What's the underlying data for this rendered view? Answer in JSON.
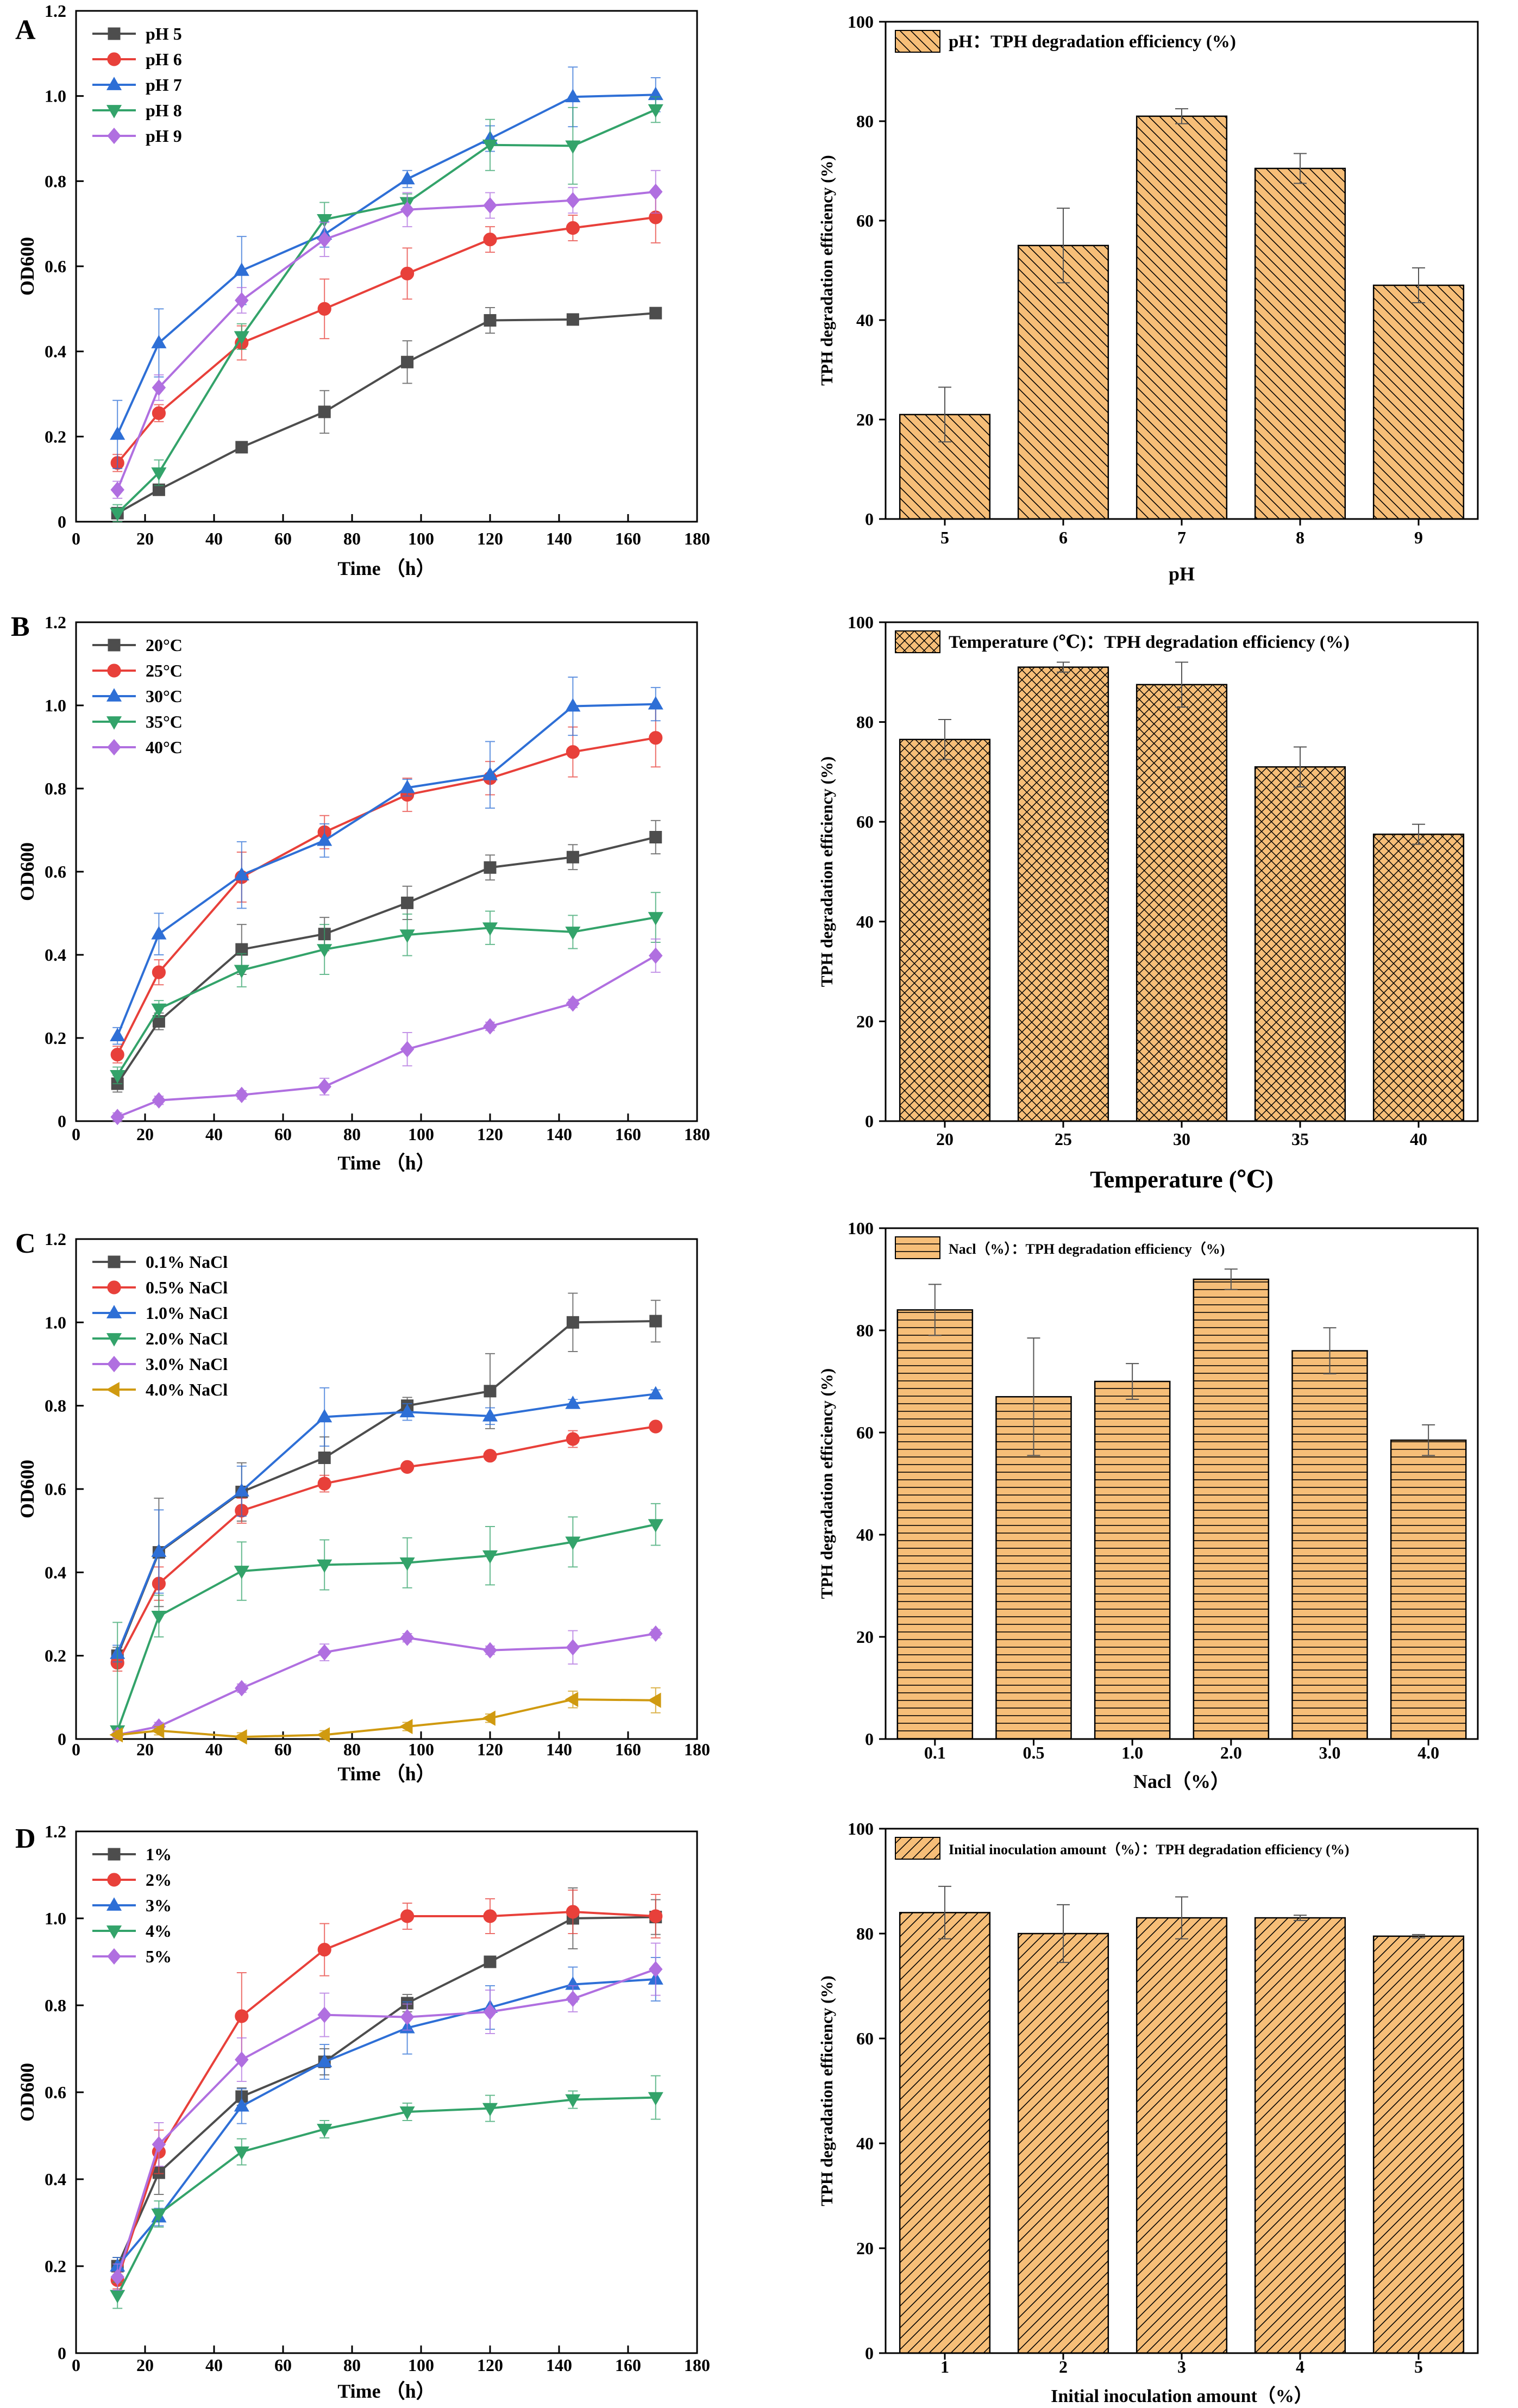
{
  "panels": [
    {
      "letter": "A",
      "line": {
        "xlabel": "Time （h）",
        "ylabel": "OD600",
        "xlim": [
          0,
          180
        ],
        "ylim": [
          0,
          1.2
        ],
        "xticks": [
          0,
          20,
          40,
          60,
          80,
          100,
          120,
          140,
          160,
          180
        ],
        "yticks": [
          0,
          0.2,
          0.4,
          0.6,
          0.8,
          1.0,
          1.2
        ],
        "ytick_labels": [
          "0",
          "0.2",
          "0.4",
          "0.6",
          "0.8",
          "1.0",
          "1.2"
        ],
        "x": [
          12,
          24,
          48,
          72,
          96,
          120,
          144,
          168
        ],
        "series": [
          {
            "name": "pH 5",
            "marker": "square",
            "color": "#4d4d4d",
            "values": [
              0.02,
              0.075,
              0.175,
              0.258,
              0.375,
              0.473,
              0.475,
              0.49
            ],
            "err": [
              0.01,
              0.01,
              0.01,
              0.05,
              0.05,
              0.03,
              0.01,
              0.01
            ]
          },
          {
            "name": "pH 6",
            "marker": "circle",
            "color": "#e8403a",
            "values": [
              0.138,
              0.255,
              0.42,
              0.5,
              0.583,
              0.663,
              0.69,
              0.715
            ],
            "err": [
              0.02,
              0.02,
              0.04,
              0.07,
              0.06,
              0.03,
              0.03,
              0.06
            ]
          },
          {
            "name": "pH 7",
            "marker": "triangle-up",
            "color": "#2e6fd6",
            "values": [
              0.205,
              0.42,
              0.59,
              0.675,
              0.805,
              0.9,
              0.998,
              1.003
            ],
            "err": [
              0.08,
              0.08,
              0.08,
              0.03,
              0.02,
              0.03,
              0.07,
              0.04
            ]
          },
          {
            "name": "pH 8",
            "marker": "triangle-down",
            "color": "#33a36a",
            "values": [
              0.02,
              0.115,
              0.435,
              0.71,
              0.75,
              0.885,
              0.883,
              0.968
            ],
            "err": [
              0.02,
              0.03,
              0.03,
              0.04,
              0.02,
              0.06,
              0.09,
              0.03
            ]
          },
          {
            "name": "pH 9",
            "marker": "diamond",
            "color": "#b06fe0",
            "values": [
              0.075,
              0.315,
              0.52,
              0.663,
              0.733,
              0.743,
              0.755,
              0.775
            ],
            "err": [
              0.02,
              0.03,
              0.03,
              0.04,
              0.04,
              0.03,
              0.03,
              0.05
            ]
          }
        ]
      },
      "bar": {
        "legend": "pH：TPH degradation efficiency (%)",
        "xlabel": "pH",
        "ylabel": "TPH degradation efficiency (%)",
        "ylim": [
          0,
          100
        ],
        "yticks": [
          0,
          20,
          40,
          60,
          80,
          100
        ],
        "categories": [
          "5",
          "6",
          "7",
          "8",
          "9"
        ],
        "values": [
          21,
          55,
          81,
          70.5,
          47
        ],
        "err": [
          5.5,
          7.5,
          1.5,
          3,
          3.5
        ],
        "pattern": "hatch-back"
      }
    },
    {
      "letter": "B",
      "line": {
        "xlabel": "Time （h）",
        "ylabel": "OD600",
        "xlim": [
          0,
          180
        ],
        "ylim": [
          0,
          1.2
        ],
        "xticks": [
          0,
          20,
          40,
          60,
          80,
          100,
          120,
          140,
          160,
          180
        ],
        "yticks": [
          0,
          0.2,
          0.4,
          0.6,
          0.8,
          1.0,
          1.2
        ],
        "ytick_labels": [
          "0",
          "0.2",
          "0.4",
          "0.6",
          "0.8",
          "1.0",
          "1.2"
        ],
        "x": [
          12,
          24,
          48,
          72,
          96,
          120,
          144,
          168
        ],
        "series": [
          {
            "name": "20°C",
            "marker": "square",
            "color": "#4d4d4d",
            "values": [
              0.09,
              0.24,
              0.413,
              0.45,
              0.525,
              0.61,
              0.635,
              0.683
            ],
            "err": [
              0.02,
              0.02,
              0.06,
              0.04,
              0.04,
              0.03,
              0.03,
              0.04
            ]
          },
          {
            "name": "25°C",
            "marker": "circle",
            "color": "#e8403a",
            "values": [
              0.16,
              0.358,
              0.587,
              0.695,
              0.785,
              0.825,
              0.888,
              0.922
            ],
            "err": [
              0.02,
              0.03,
              0.06,
              0.04,
              0.04,
              0.04,
              0.06,
              0.07
            ]
          },
          {
            "name": "30°C",
            "marker": "triangle-up",
            "color": "#2e6fd6",
            "values": [
              0.205,
              0.45,
              0.592,
              0.675,
              0.802,
              0.833,
              0.998,
              1.003
            ],
            "err": [
              0.02,
              0.05,
              0.08,
              0.04,
              0.02,
              0.08,
              0.07,
              0.04
            ]
          },
          {
            "name": "35°C",
            "marker": "triangle-down",
            "color": "#33a36a",
            "values": [
              0.11,
              0.27,
              0.363,
              0.413,
              0.448,
              0.465,
              0.455,
              0.49
            ],
            "err": [
              0.02,
              0.02,
              0.04,
              0.06,
              0.05,
              0.04,
              0.04,
              0.06
            ]
          },
          {
            "name": "40°C",
            "marker": "diamond",
            "color": "#b06fe0",
            "values": [
              0.01,
              0.05,
              0.063,
              0.083,
              0.173,
              0.228,
              0.283,
              0.398
            ],
            "err": [
              0.01,
              0.01,
              0.01,
              0.02,
              0.04,
              0.01,
              0.01,
              0.04
            ]
          }
        ]
      },
      "bar": {
        "legend": "Temperature (℃)：TPH degradation efficiency (%)",
        "xlabel": "Temperature (℃)",
        "ylabel": "TPH degradation efficiency (%)",
        "ylim": [
          0,
          100
        ],
        "yticks": [
          0,
          20,
          40,
          60,
          80,
          100
        ],
        "categories": [
          "20",
          "25",
          "30",
          "35",
          "40"
        ],
        "values": [
          76.5,
          91,
          87.5,
          71,
          57.5
        ],
        "err": [
          4,
          1,
          4.5,
          4,
          2
        ],
        "pattern": "crosshatch"
      }
    },
    {
      "letter": "C",
      "line": {
        "xlabel": "Time （h）",
        "ylabel": "OD600",
        "xlim": [
          0,
          180
        ],
        "ylim": [
          0,
          1.2
        ],
        "xticks": [
          0,
          20,
          40,
          60,
          80,
          100,
          120,
          140,
          160,
          180
        ],
        "yticks": [
          0,
          0.2,
          0.4,
          0.6,
          0.8,
          1.0,
          1.2
        ],
        "ytick_labels": [
          "0",
          "0.2",
          "0.4",
          "0.6",
          "0.8",
          "1.0",
          "1.2"
        ],
        "x": [
          12,
          24,
          48,
          72,
          96,
          120,
          144,
          168
        ],
        "series": [
          {
            "name": "0.1% NaCl",
            "marker": "square",
            "color": "#4d4d4d",
            "values": [
              0.2,
              0.448,
              0.593,
              0.675,
              0.8,
              0.835,
              1.0,
              1.003
            ],
            "err": [
              0.02,
              0.13,
              0.07,
              0.05,
              0.02,
              0.09,
              0.07,
              0.05
            ]
          },
          {
            "name": "0.5% NaCl",
            "marker": "circle",
            "color": "#e8403a",
            "values": [
              0.183,
              0.373,
              0.548,
              0.613,
              0.653,
              0.68,
              0.72,
              0.75
            ],
            "err": [
              0.02,
              0.04,
              0.03,
              0.02,
              0.01,
              0.01,
              0.02,
              0.01
            ]
          },
          {
            "name": "1.0% NaCl",
            "marker": "triangle-up",
            "color": "#2e6fd6",
            "values": [
              0.205,
              0.45,
              0.595,
              0.773,
              0.785,
              0.775,
              0.805,
              0.828
            ],
            "err": [
              0.02,
              0.1,
              0.06,
              0.07,
              0.02,
              0.02,
              0.01,
              0.01
            ]
          },
          {
            "name": "2.0% NaCl",
            "marker": "triangle-down",
            "color": "#33a36a",
            "values": [
              0.02,
              0.295,
              0.403,
              0.418,
              0.423,
              0.44,
              0.473,
              0.515
            ],
            "err": [
              0.26,
              0.05,
              0.07,
              0.06,
              0.06,
              0.07,
              0.06,
              0.05
            ]
          },
          {
            "name": "3.0% NaCl",
            "marker": "diamond",
            "color": "#b06fe0",
            "values": [
              0.01,
              0.03,
              0.122,
              0.208,
              0.243,
              0.213,
              0.22,
              0.253
            ],
            "err": [
              0.01,
              0.01,
              0.01,
              0.02,
              0.01,
              0.01,
              0.04,
              0.01
            ]
          },
          {
            "name": "4.0% NaCl",
            "marker": "triangle-left",
            "color": "#d09a10",
            "values": [
              0.01,
              0.02,
              0.005,
              0.01,
              0.03,
              0.05,
              0.095,
              0.093
            ],
            "err": [
              0.01,
              0.01,
              0.01,
              0.01,
              0.01,
              0.01,
              0.02,
              0.03
            ]
          }
        ]
      },
      "bar": {
        "legend": "Nacl（%）：TPH degradation efficiency（%)",
        "xlabel": "Nacl（%）",
        "ylabel": "TPH degradation efficiency (%)",
        "ylim": [
          0,
          100
        ],
        "yticks": [
          0,
          20,
          40,
          60,
          80,
          100
        ],
        "categories": [
          "0.1",
          "0.5",
          "1.0",
          "2.0",
          "3.0",
          "4.0"
        ],
        "values": [
          84,
          67,
          70,
          90,
          76,
          58.5
        ],
        "err": [
          5,
          11.5,
          3.5,
          2,
          4.5,
          3
        ],
        "pattern": "horizontal"
      }
    },
    {
      "letter": "D",
      "line": {
        "xlabel": "Time （h）",
        "ylabel": "OD600",
        "xlim": [
          0,
          180
        ],
        "ylim": [
          0,
          1.2
        ],
        "xticks": [
          0,
          20,
          40,
          60,
          80,
          100,
          120,
          140,
          160,
          180
        ],
        "yticks": [
          0,
          0.2,
          0.4,
          0.6,
          0.8,
          1.0,
          1.2
        ],
        "ytick_labels": [
          "0",
          "0.2",
          "0.4",
          "0.6",
          "0.8",
          "1.0",
          "1.2"
        ],
        "x": [
          12,
          24,
          48,
          72,
          96,
          120,
          144,
          168
        ],
        "series": [
          {
            "name": "1%",
            "marker": "square",
            "color": "#4d4d4d",
            "values": [
              0.2,
              0.415,
              0.59,
              0.67,
              0.805,
              0.9,
              1.0,
              1.003
            ],
            "err": [
              0.02,
              0.05,
              0.02,
              0.03,
              0.02,
              0.01,
              0.07,
              0.04
            ]
          },
          {
            "name": "2%",
            "marker": "circle",
            "color": "#e8403a",
            "values": [
              0.168,
              0.463,
              0.775,
              0.928,
              1.005,
              1.005,
              1.015,
              1.005
            ],
            "err": [
              0.02,
              0.05,
              0.1,
              0.06,
              0.03,
              0.04,
              0.05,
              0.05
            ]
          },
          {
            "name": "3%",
            "marker": "triangle-up",
            "color": "#2e6fd6",
            "values": [
              0.2,
              0.313,
              0.568,
              0.67,
              0.748,
              0.795,
              0.848,
              0.86
            ],
            "err": [
              0.02,
              0.02,
              0.04,
              0.04,
              0.06,
              0.05,
              0.04,
              0.05
            ]
          },
          {
            "name": "4%",
            "marker": "triangle-down",
            "color": "#33a36a",
            "values": [
              0.133,
              0.32,
              0.463,
              0.515,
              0.555,
              0.563,
              0.583,
              0.588
            ],
            "err": [
              0.03,
              0.03,
              0.03,
              0.02,
              0.02,
              0.03,
              0.02,
              0.05
            ]
          },
          {
            "name": "5%",
            "marker": "diamond",
            "color": "#b06fe0",
            "values": [
              0.175,
              0.48,
              0.675,
              0.778,
              0.773,
              0.785,
              0.815,
              0.883
            ],
            "err": [
              0.03,
              0.05,
              0.05,
              0.05,
              0.03,
              0.05,
              0.03,
              0.06
            ]
          }
        ]
      },
      "bar": {
        "legend": "Initial inoculation amount（%）：TPH degradation efficiency (%)",
        "xlabel": "Initial inoculation amount（%）",
        "ylabel": "TPH degradation efficiency (%)",
        "ylim": [
          0,
          100
        ],
        "yticks": [
          0,
          20,
          40,
          60,
          80,
          100
        ],
        "categories": [
          "1",
          "2",
          "3",
          "4",
          "5"
        ],
        "values": [
          84,
          80,
          83,
          83,
          79.5
        ],
        "err": [
          5,
          5.5,
          4,
          0.5,
          0.3
        ],
        "pattern": "hatch-fwd"
      }
    }
  ]
}
